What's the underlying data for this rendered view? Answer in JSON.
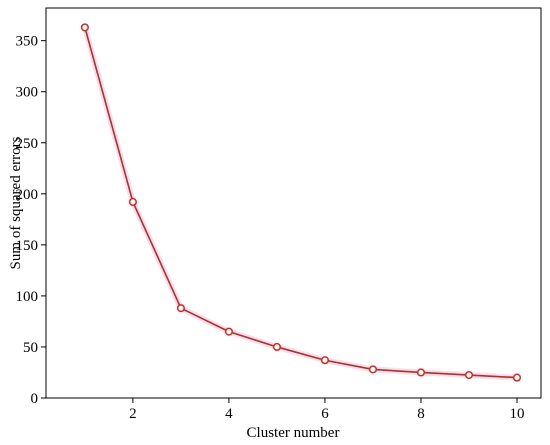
{
  "chart_data": {
    "type": "line",
    "x_label": "Cluster number",
    "y_label": "Sum of squared errors",
    "x": [
      1,
      2,
      3,
      4,
      5,
      6,
      7,
      8,
      9,
      10
    ],
    "series": [
      {
        "values": [
          363,
          192,
          88,
          65,
          50,
          37,
          28,
          25,
          22.5,
          20
        ],
        "color": "#b3301e",
        "marker_color": "#d9261c"
      }
    ],
    "xlim": [
      0.19,
      10.5
    ],
    "ylim": [
      0,
      382
    ],
    "xticks": [
      2,
      4,
      6,
      8,
      10
    ],
    "yticks": [
      0,
      50,
      100,
      150,
      200,
      250,
      300,
      350
    ],
    "grid": false
  }
}
